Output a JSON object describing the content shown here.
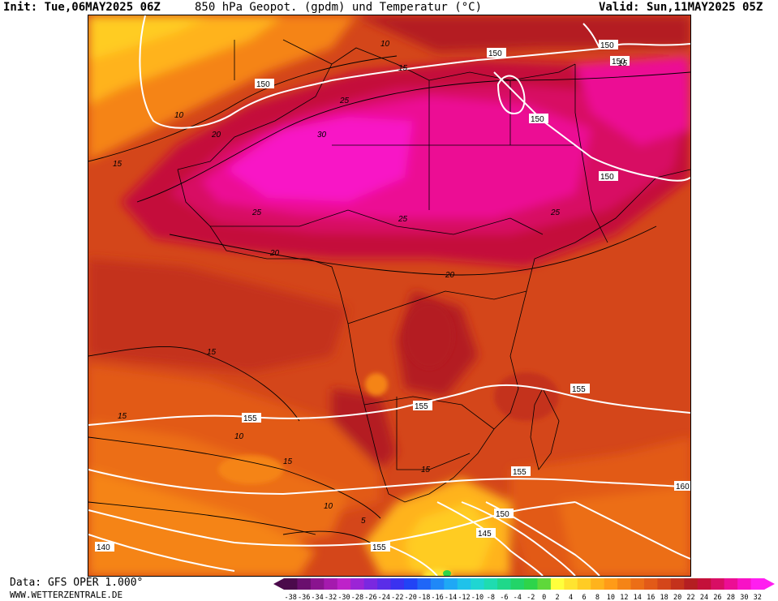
{
  "header": {
    "init": "Init: Tue,06MAY2025 06Z",
    "title": "850 hPa Geopot. (gpdm) und Temperatur (°C)",
    "valid": "Valid: Sun,11MAY2025 05Z"
  },
  "footer": {
    "source": "Data: GFS OPER 1.000°",
    "site": "WWW.WETTERZENTRALE.DE"
  },
  "legend": {
    "ticks": [
      "-38",
      "-36",
      "-34",
      "-32",
      "-30",
      "-28",
      "-26",
      "-24",
      "-22",
      "-20",
      "-18",
      "-16",
      "-14",
      "-12",
      "-10",
      "-8",
      "-6",
      "-4",
      "-2",
      "0",
      "2",
      "4",
      "6",
      "8",
      "10",
      "12",
      "14",
      "16",
      "18",
      "20",
      "22",
      "24",
      "26",
      "28",
      "30",
      "32"
    ],
    "colors": [
      "#4b0a4b",
      "#6a0f6e",
      "#8a148f",
      "#a51aae",
      "#be22c9",
      "#9b24d6",
      "#7a28e0",
      "#5a2de8",
      "#3a32f0",
      "#2243f5",
      "#1f66f7",
      "#1f88f7",
      "#1fa8f5",
      "#1fc2ea",
      "#1fd6d2",
      "#1fdcb0",
      "#1fd88a",
      "#22d468",
      "#2ed44a",
      "#5fd83a",
      "#ffff3c",
      "#ffe430",
      "#ffcc24",
      "#ffb31c",
      "#ff9b18",
      "#f58416",
      "#ec6e16",
      "#e25a18",
      "#d4461a",
      "#c4321c",
      "#b41e22",
      "#c4103a",
      "#d80e64",
      "#ec0e94",
      "#f812c6",
      "#ff1ef0"
    ]
  },
  "map_labels": {
    "geopotential": [
      "150",
      "150",
      "150",
      "150",
      "150",
      "150",
      "155",
      "155",
      "155",
      "155",
      "160",
      "150",
      "145",
      "155",
      "140"
    ],
    "temperature": [
      "10",
      "15",
      "15",
      "10",
      "20",
      "15",
      "25",
      "30",
      "25",
      "25",
      "25",
      "20",
      "20",
      "15",
      "15",
      "10",
      "15",
      "15",
      "10",
      "5"
    ]
  }
}
